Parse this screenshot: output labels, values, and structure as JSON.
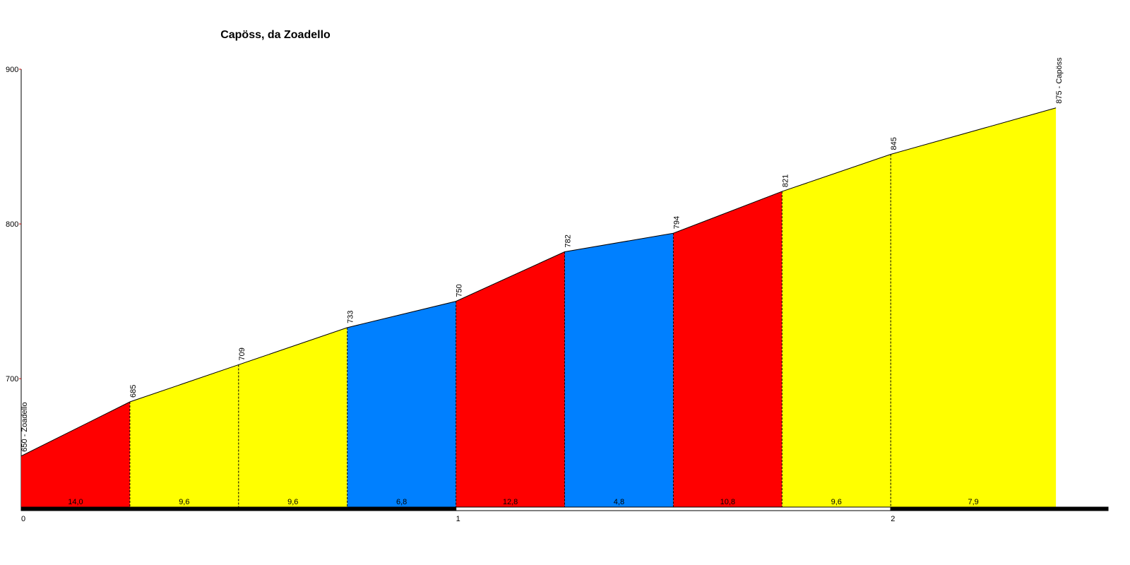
{
  "chart_data": {
    "type": "elevation-profile",
    "title": "Capöss, da Zoadello",
    "x": [
      0,
      0.25,
      0.5,
      0.75,
      1,
      1.25,
      1.5,
      1.75,
      2,
      2.38
    ],
    "values": [
      650,
      685,
      709,
      733,
      750,
      782,
      794,
      821,
      845,
      875
    ],
    "value_labels": [
      "650 - Zoadello",
      "685",
      "709",
      "733",
      "750",
      "782",
      "794",
      "821",
      "845",
      "875 - Capöss"
    ],
    "gradients": [
      14,
      9.6,
      9.6,
      6.8,
      12.8,
      4.8,
      10.8,
      9.6,
      7.9
    ],
    "gradient_labels": [
      "14,0",
      "9,6",
      "9,6",
      "6,8",
      "12,8",
      "4,8",
      "10,8",
      "9,6",
      "7,9"
    ],
    "segment_colors": [
      "#ff0000",
      "#ffff00",
      "#ffff00",
      "#0080ff",
      "#ff0000",
      "#0080ff",
      "#ff0000",
      "#ffff00",
      "#ffff00"
    ],
    "xlim": [
      0,
      2.5
    ],
    "xticks": [
      0,
      1,
      2
    ],
    "ylim": [
      617,
      900
    ],
    "yticks": [
      700,
      800,
      900
    ]
  }
}
